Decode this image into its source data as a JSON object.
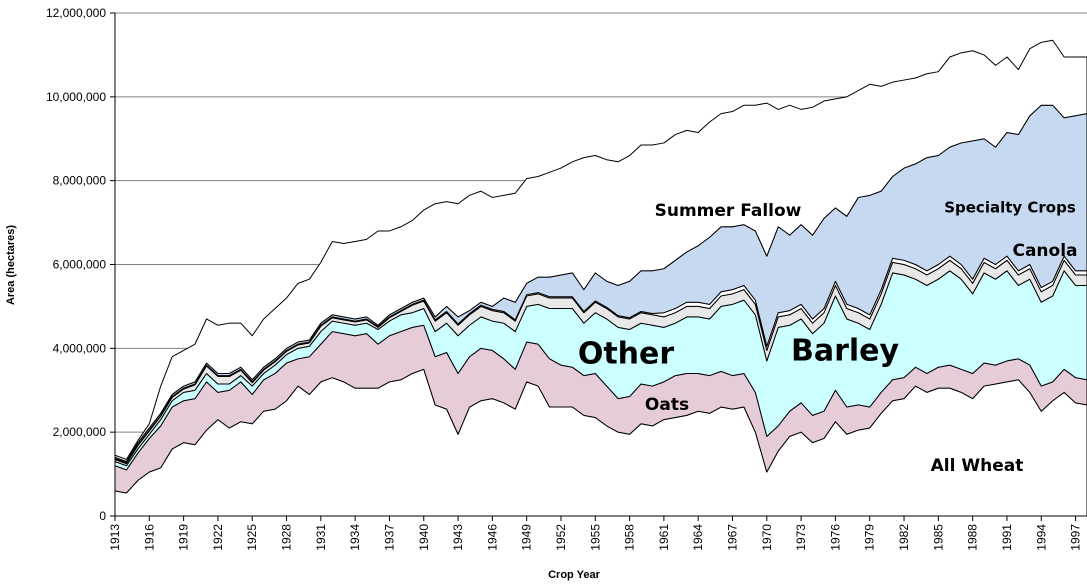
{
  "chart_data": {
    "type": "stacked-area",
    "ylabel": "Area (hectares)",
    "xlabel": "Crop Year",
    "x": [
      1913,
      1914,
      1915,
      1916,
      1917,
      1918,
      1919,
      1920,
      1921,
      1922,
      1923,
      1924,
      1925,
      1926,
      1927,
      1928,
      1929,
      1930,
      1931,
      1932,
      1933,
      1934,
      1935,
      1936,
      1937,
      1938,
      1939,
      1940,
      1941,
      1942,
      1943,
      1944,
      1945,
      1946,
      1947,
      1948,
      1949,
      1950,
      1951,
      1952,
      1953,
      1954,
      1955,
      1956,
      1957,
      1958,
      1959,
      1960,
      1961,
      1962,
      1963,
      1964,
      1965,
      1966,
      1967,
      1968,
      1969,
      1970,
      1971,
      1972,
      1973,
      1974,
      1975,
      1976,
      1977,
      1978,
      1979,
      1980,
      1981,
      1982,
      1983,
      1984,
      1985,
      1986,
      1987,
      1988,
      1989,
      1990,
      1991,
      1992,
      1993,
      1994,
      1995,
      1996,
      1997,
      1998
    ],
    "xlim": [
      1913,
      1998
    ],
    "xticks": [
      1913,
      1916,
      1919,
      1922,
      1925,
      1928,
      1931,
      1934,
      1937,
      1940,
      1943,
      1946,
      1949,
      1952,
      1955,
      1958,
      1961,
      1964,
      1967,
      1970,
      1973,
      1976,
      1979,
      1982,
      1985,
      1988,
      1991,
      1994,
      1997
    ],
    "ylim": [
      0,
      12000000
    ],
    "yticks": [
      0,
      {
        "value": 2000000,
        "label": "2,000,000"
      },
      {
        "value": 4000000,
        "label": "4,000,000"
      },
      {
        "value": 6000000,
        "label": "6,000,000"
      },
      {
        "value": 8000000,
        "label": "8,000,000"
      },
      {
        "value": 10000000,
        "label": "10,000,000"
      },
      {
        "value": 12000000,
        "label": "12,000,000"
      }
    ],
    "grid": true,
    "series": [
      {
        "name": "All Wheat",
        "color": "#ffffff",
        "values": [
          600000,
          550000,
          850000,
          1050000,
          1150000,
          1600000,
          1750000,
          1700000,
          2050000,
          2300000,
          2100000,
          2250000,
          2200000,
          2500000,
          2550000,
          2750000,
          3100000,
          2900000,
          3200000,
          3300000,
          3200000,
          3050000,
          3050000,
          3050000,
          3200000,
          3250000,
          3400000,
          3500000,
          2650000,
          2550000,
          1950000,
          2600000,
          2750000,
          2800000,
          2700000,
          2550000,
          3200000,
          3100000,
          2600000,
          2600000,
          2600000,
          2400000,
          2350000,
          2150000,
          2000000,
          1950000,
          2200000,
          2150000,
          2300000,
          2350000,
          2400000,
          2500000,
          2450000,
          2600000,
          2550000,
          2600000,
          2000000,
          1050000,
          1550000,
          1900000,
          2000000,
          1750000,
          1850000,
          2250000,
          1950000,
          2050000,
          2100000,
          2450000,
          2750000,
          2800000,
          3100000,
          2950000,
          3050000,
          3050000,
          2950000,
          2800000,
          3100000,
          3150000,
          3200000,
          3250000,
          2950000,
          2500000,
          2750000,
          2950000,
          2700000,
          2650000
        ]
      },
      {
        "name": "Oats",
        "color": "#e6ccd9",
        "values": [
          600000,
          550000,
          650000,
          800000,
          1000000,
          1000000,
          1000000,
          1100000,
          1150000,
          650000,
          900000,
          950000,
          700000,
          750000,
          850000,
          900000,
          650000,
          900000,
          900000,
          1100000,
          1150000,
          1250000,
          1300000,
          1050000,
          1100000,
          1150000,
          1100000,
          1050000,
          1150000,
          1350000,
          1450000,
          1200000,
          1250000,
          1150000,
          1050000,
          950000,
          950000,
          1000000,
          1150000,
          1000000,
          950000,
          950000,
          1050000,
          950000,
          800000,
          900000,
          950000,
          950000,
          900000,
          1000000,
          1000000,
          900000,
          900000,
          850000,
          800000,
          800000,
          950000,
          850000,
          600000,
          600000,
          700000,
          650000,
          650000,
          750000,
          650000,
          600000,
          500000,
          500000,
          500000,
          500000,
          450000,
          450000,
          500000,
          550000,
          550000,
          600000,
          550000,
          450000,
          500000,
          500000,
          650000,
          600000,
          450000,
          550000,
          600000,
          600000
        ]
      },
      {
        "name": "Barley",
        "color": "#ccffff",
        "values": [
          100000,
          100000,
          100000,
          100000,
          150000,
          150000,
          200000,
          200000,
          200000,
          200000,
          150000,
          150000,
          200000,
          150000,
          200000,
          200000,
          250000,
          250000,
          300000,
          250000,
          250000,
          250000,
          250000,
          350000,
          350000,
          400000,
          350000,
          400000,
          600000,
          700000,
          900000,
          750000,
          750000,
          700000,
          850000,
          900000,
          850000,
          950000,
          1200000,
          1350000,
          1400000,
          1250000,
          1450000,
          1600000,
          1700000,
          1600000,
          1450000,
          1450000,
          1300000,
          1250000,
          1350000,
          1350000,
          1350000,
          1550000,
          1700000,
          1750000,
          1850000,
          1800000,
          2350000,
          2050000,
          2000000,
          1950000,
          2100000,
          2250000,
          2100000,
          1950000,
          1850000,
          2100000,
          2550000,
          2450000,
          2100000,
          2100000,
          2100000,
          2250000,
          2150000,
          1900000,
          2150000,
          2050000,
          2150000,
          1750000,
          2050000,
          2000000,
          2050000,
          2350000,
          2200000,
          2250000
        ]
      },
      {
        "name": "Other",
        "color": "#e8e8e8",
        "values": [
          50000,
          50000,
          80000,
          80000,
          80000,
          80000,
          80000,
          130000,
          180000,
          180000,
          180000,
          130000,
          80000,
          80000,
          80000,
          80000,
          80000,
          80000,
          130000,
          80000,
          80000,
          80000,
          80000,
          50000,
          80000,
          80000,
          180000,
          180000,
          250000,
          250000,
          250000,
          250000,
          250000,
          250000,
          250000,
          250000,
          250000,
          250000,
          250000,
          250000,
          250000,
          250000,
          250000,
          250000,
          250000,
          250000,
          250000,
          250000,
          250000,
          250000,
          250000,
          250000,
          250000,
          250000,
          250000,
          250000,
          250000,
          250000,
          250000,
          250000,
          250000,
          250000,
          250000,
          250000,
          250000,
          250000,
          250000,
          250000,
          250000,
          250000,
          250000,
          250000,
          250000,
          250000,
          250000,
          250000,
          250000,
          250000,
          250000,
          250000,
          250000,
          250000,
          250000,
          250000,
          250000,
          250000
        ]
      },
      {
        "name": "Canola",
        "color": "#ffffff",
        "values": [
          20000,
          20000,
          20000,
          20000,
          20000,
          20000,
          20000,
          20000,
          20000,
          20000,
          20000,
          20000,
          20000,
          20000,
          20000,
          20000,
          20000,
          20000,
          20000,
          20000,
          20000,
          20000,
          20000,
          20000,
          20000,
          20000,
          20000,
          20000,
          30000,
          30000,
          30000,
          30000,
          30000,
          30000,
          30000,
          30000,
          30000,
          30000,
          30000,
          30000,
          30000,
          30000,
          30000,
          30000,
          30000,
          30000,
          30000,
          30000,
          100000,
          100000,
          100000,
          100000,
          100000,
          100000,
          100000,
          100000,
          100000,
          100000,
          100000,
          100000,
          100000,
          100000,
          100000,
          100000,
          100000,
          100000,
          100000,
          100000,
          100000,
          100000,
          100000,
          100000,
          100000,
          100000,
          100000,
          100000,
          100000,
          100000,
          100000,
          100000,
          100000,
          100000,
          100000,
          100000,
          100000,
          100000
        ]
      },
      {
        "name": "Specialty Crops",
        "color": "#c6d9f0",
        "values": [
          30000,
          30000,
          50000,
          50000,
          50000,
          50000,
          50000,
          50000,
          50000,
          50000,
          50000,
          50000,
          50000,
          50000,
          50000,
          50000,
          50000,
          50000,
          50000,
          50000,
          50000,
          50000,
          50000,
          30000,
          50000,
          50000,
          50000,
          50000,
          70000,
          120000,
          170000,
          70000,
          70000,
          70000,
          320000,
          420000,
          270000,
          370000,
          470000,
          520000,
          570000,
          520000,
          670000,
          620000,
          720000,
          870000,
          970000,
          1020000,
          1050000,
          1150000,
          1200000,
          1350000,
          1600000,
          1550000,
          1500000,
          1450000,
          1650000,
          2150000,
          2050000,
          1800000,
          1900000,
          2000000,
          2150000,
          1750000,
          2100000,
          2650000,
          2850000,
          2350000,
          1950000,
          2200000,
          2400000,
          2700000,
          2600000,
          2600000,
          2900000,
          3300000,
          2850000,
          2800000,
          2950000,
          3250000,
          3550000,
          4350000,
          4200000,
          3300000,
          3700000,
          3750000
        ]
      },
      {
        "name": "Summer Fallow",
        "color": "#ffffff",
        "values": [
          50000,
          50000,
          50000,
          100000,
          650000,
          900000,
          850000,
          900000,
          1050000,
          1150000,
          1200000,
          1050000,
          1050000,
          1150000,
          1200000,
          1200000,
          1400000,
          1450000,
          1450000,
          1750000,
          1750000,
          1850000,
          1850000,
          2250000,
          2000000,
          1950000,
          1950000,
          2100000,
          2700000,
          2500000,
          2700000,
          2750000,
          2650000,
          2600000,
          2450000,
          2600000,
          2500000,
          2400000,
          2500000,
          2550000,
          2650000,
          3150000,
          2800000,
          2900000,
          2950000,
          3000000,
          3000000,
          3000000,
          3000000,
          3000000,
          2900000,
          2700000,
          2750000,
          2700000,
          2750000,
          2850000,
          3000000,
          3650000,
          2800000,
          3100000,
          2750000,
          3050000,
          2800000,
          2600000,
          2850000,
          2550000,
          2650000,
          2500000,
          2250000,
          2100000,
          2050000,
          2000000,
          2000000,
          2150000,
          2150000,
          2150000,
          2000000,
          1950000,
          1800000,
          1550000,
          1600000,
          1500000,
          1550000,
          1450000,
          1400000,
          1350000
        ]
      }
    ]
  }
}
